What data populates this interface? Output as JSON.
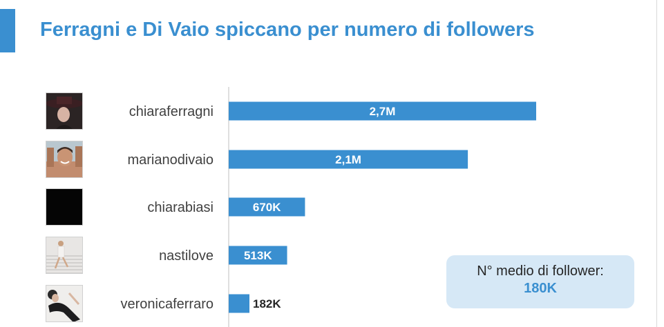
{
  "title": "Ferragni e Di Vaio spiccano per numero di followers",
  "colors": {
    "accent": "#3a8fd0",
    "bar": "#3a8fd0",
    "box_bg": "#d6e8f6"
  },
  "chart_data": {
    "type": "bar",
    "orientation": "horizontal",
    "categories": [
      "chiaraferragni",
      "marianodivaio",
      "chiarabiasi",
      "nastilove",
      "veronicaferraro"
    ],
    "values": [
      2700000,
      2100000,
      670000,
      513000,
      182000
    ],
    "data_labels": [
      "2,7M",
      "2,1M",
      "670K",
      "513K",
      "182K"
    ],
    "avatar_icons": [
      "avatar-hat-woman",
      "avatar-smiling-man",
      "avatar-black",
      "avatar-woman-stairs",
      "avatar-woman-lying"
    ],
    "xlim": [
      0,
      2700000
    ],
    "grid": false,
    "legend": "none"
  },
  "summary_box": {
    "label": "N° medio di follower:",
    "value": "180K"
  }
}
